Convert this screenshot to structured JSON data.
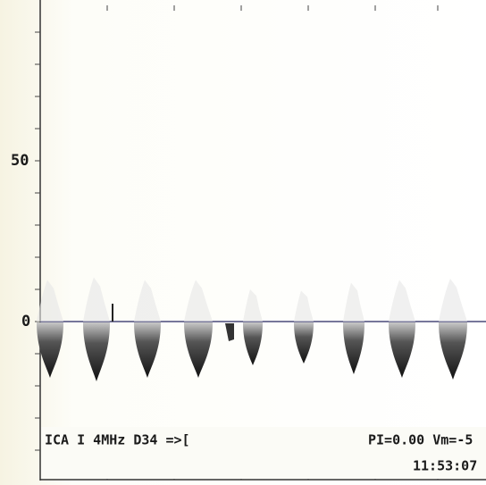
{
  "axis": {
    "labels": [
      "50",
      "0"
    ]
  },
  "status": {
    "probe": "ICA I 4MHz D34 =>[",
    "indices": "PI=0.00 Vm=-5",
    "time": "11:53:07"
  }
}
